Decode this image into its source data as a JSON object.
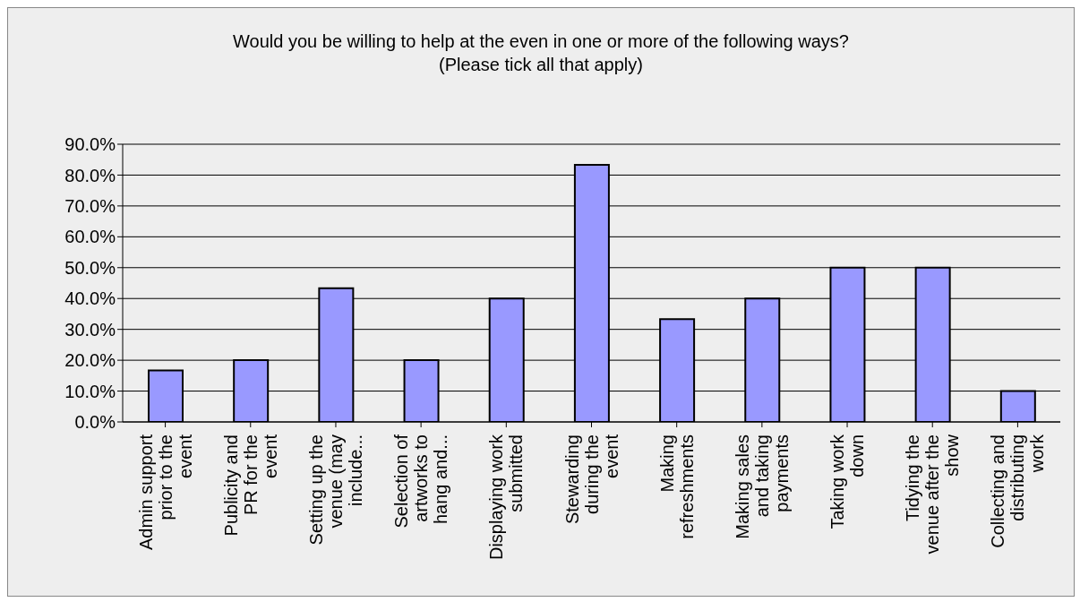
{
  "chart_data": {
    "type": "bar",
    "title": "Would you be willing to help at the even in one or more of the following ways?\n(Please tick all that apply)",
    "categories": [
      "Admin support prior to the event",
      "Publicity and PR for the event",
      "Setting up the venue (may include...",
      "Selection of artworks to hang and...",
      "Displaying work submitted",
      "Stewarding during the event",
      "Making refreshments",
      "Making sales and taking payments",
      "Taking work down",
      "Tidying the venue after the show",
      "Collecting and distributing work"
    ],
    "values": [
      16.7,
      20.0,
      43.3,
      20.0,
      40.0,
      83.3,
      33.3,
      40.0,
      50.0,
      50.0,
      10.0
    ],
    "color": "#9999ff",
    "ylim": [
      0,
      90
    ],
    "yticks": [
      {
        "value": 0,
        "label": "0.0%"
      },
      {
        "value": 10,
        "label": "10.0%"
      },
      {
        "value": 20,
        "label": "20.0%"
      },
      {
        "value": 30,
        "label": "30.0%"
      },
      {
        "value": 40,
        "label": "40.0%"
      },
      {
        "value": 50,
        "label": "50.0%"
      },
      {
        "value": 60,
        "label": "60.0%"
      },
      {
        "value": 70,
        "label": "70.0%"
      },
      {
        "value": 80,
        "label": "80.0%"
      },
      {
        "value": 90,
        "label": "90.0%"
      }
    ],
    "grid": "y"
  }
}
